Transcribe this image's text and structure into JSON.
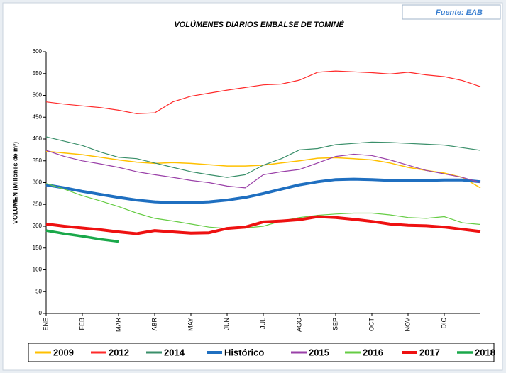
{
  "chart_data": {
    "type": "line",
    "title": "VOLÚMENES DIARIOS EMBALSE DE TOMINÉ",
    "source": "Fuente: EAB",
    "y_label": "VOLUMEN (Millones de m³)",
    "categories": [
      "ENE",
      null,
      "FEB",
      null,
      "MAR",
      null,
      "ABR",
      null,
      "MAY",
      null,
      "JUN",
      null,
      "JUL",
      null,
      "AGO",
      null,
      "SEP",
      null,
      "OCT",
      null,
      "NOV",
      null,
      "DIC",
      null,
      null
    ],
    "ylim": [
      0,
      600
    ],
    "yticks": [
      0,
      50,
      100,
      150,
      200,
      250,
      300,
      350,
      400,
      450,
      500,
      550,
      600
    ],
    "grid": false,
    "series": [
      {
        "name": "2009",
        "color": "#ffc000",
        "width": 1.5,
        "values": [
          372,
          368,
          364,
          358,
          352,
          347,
          344,
          346,
          344,
          341,
          338,
          338,
          340,
          345,
          350,
          356,
          357,
          355,
          352,
          345,
          335,
          328,
          322,
          312,
          288
        ]
      },
      {
        "name": "2012",
        "color": "#ff2a2a",
        "width": 1.2,
        "values": [
          485,
          480,
          476,
          472,
          466,
          458,
          460,
          485,
          498,
          505,
          512,
          518,
          524,
          526,
          535,
          553,
          556,
          554,
          552,
          549,
          553,
          547,
          543,
          534,
          520
        ]
      },
      {
        "name": "2014",
        "color": "#3a8f6a",
        "width": 1.2,
        "values": [
          405,
          395,
          385,
          370,
          358,
          355,
          345,
          335,
          325,
          318,
          312,
          318,
          340,
          355,
          375,
          378,
          387,
          390,
          393,
          392,
          390,
          388,
          386,
          380,
          374
        ]
      },
      {
        "name": "Histórico",
        "color": "#1f6fc0",
        "width": 4,
        "values": [
          295,
          288,
          280,
          273,
          266,
          260,
          256,
          254,
          254,
          256,
          260,
          266,
          275,
          285,
          295,
          302,
          307,
          308,
          307,
          305,
          305,
          305,
          306,
          306,
          302
        ]
      },
      {
        "name": "2015",
        "color": "#9a40a8",
        "width": 1.2,
        "values": [
          374,
          360,
          350,
          343,
          335,
          325,
          318,
          312,
          305,
          300,
          292,
          288,
          318,
          325,
          330,
          345,
          360,
          365,
          362,
          352,
          340,
          328,
          320,
          312,
          300
        ]
      },
      {
        "name": "2016",
        "color": "#66cc44",
        "width": 1.2,
        "values": [
          298,
          285,
          270,
          258,
          245,
          230,
          218,
          212,
          205,
          198,
          195,
          196,
          200,
          212,
          220,
          225,
          228,
          230,
          230,
          226,
          220,
          218,
          222,
          208,
          204
        ]
      },
      {
        "name": "2017",
        "color": "#ee1111",
        "width": 4,
        "values": [
          205,
          200,
          196,
          192,
          187,
          183,
          190,
          187,
          184,
          185,
          195,
          198,
          210,
          212,
          215,
          222,
          220,
          216,
          211,
          205,
          202,
          201,
          198,
          193,
          188
        ]
      },
      {
        "name": "2018",
        "color": "#1aa84a",
        "width": 3.5,
        "values": [
          190,
          183,
          177,
          170,
          165,
          null,
          null,
          null,
          null,
          null,
          null,
          null,
          null,
          null,
          null,
          null,
          null,
          null,
          null,
          null,
          null,
          null,
          null,
          null,
          null
        ]
      }
    ]
  }
}
